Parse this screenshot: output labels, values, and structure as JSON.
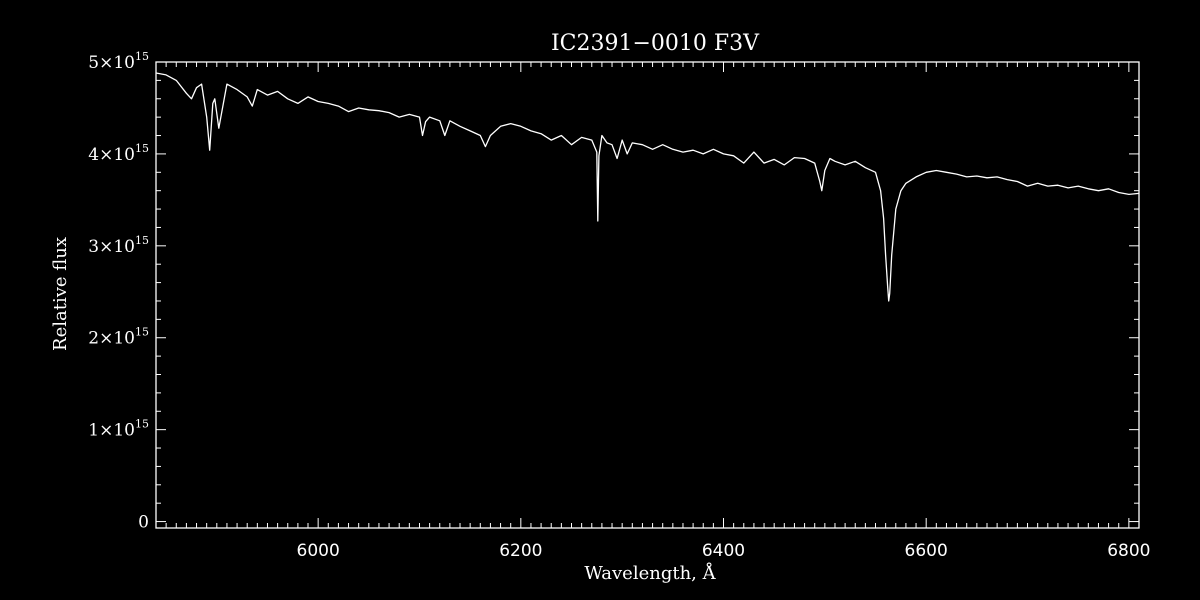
{
  "chart_data": {
    "type": "line",
    "title": "IC2391−0010   F3V",
    "xlabel": "Wavelength, Å",
    "ylabel": "Relative flux",
    "xlim": [
      5840,
      6810
    ],
    "ylim": [
      -70000000000000.0,
      5000000000000000.0
    ],
    "x_ticks": [
      6000,
      6200,
      6400,
      6600,
      6800
    ],
    "x_tick_labels": [
      "6000",
      "6200",
      "6400",
      "6600",
      "6800"
    ],
    "y_ticks": [
      0,
      1000000000000000.0,
      2000000000000000.0,
      3000000000000000.0,
      4000000000000000.0,
      5000000000000000.0
    ],
    "y_tick_labels": [
      {
        "mantissa": "0",
        "exponent": ""
      },
      {
        "mantissa": "1×10",
        "exponent": "15"
      },
      {
        "mantissa": "2×10",
        "exponent": "15"
      },
      {
        "mantissa": "3×10",
        "exponent": "15"
      },
      {
        "mantissa": "4×10",
        "exponent": "15"
      },
      {
        "mantissa": "5×10",
        "exponent": "15"
      }
    ],
    "grid": false,
    "colors": {
      "background": "#000000",
      "foreground": "#ffffff"
    },
    "series": [
      {
        "x": [
          5840,
          5850,
          5860,
          5870,
          5875,
          5880,
          5885,
          5890,
          5893,
          5896,
          5898,
          5902,
          5910,
          5920,
          5930,
          5935,
          5940,
          5950,
          5960,
          5970,
          5980,
          5990,
          6000,
          6010,
          6020,
          6030,
          6040,
          6050,
          6060,
          6070,
          6080,
          6090,
          6100,
          6103,
          6106,
          6110,
          6120,
          6125,
          6130,
          6140,
          6150,
          6160,
          6165,
          6170,
          6180,
          6190,
          6200,
          6210,
          6220,
          6230,
          6240,
          6250,
          6260,
          6270,
          6275,
          6276,
          6277,
          6280,
          6285,
          6290,
          6295,
          6300,
          6305,
          6310,
          6320,
          6330,
          6340,
          6350,
          6360,
          6370,
          6380,
          6390,
          6400,
          6410,
          6420,
          6430,
          6440,
          6450,
          6460,
          6470,
          6480,
          6490,
          6495,
          6497,
          6500,
          6505,
          6510,
          6520,
          6530,
          6540,
          6550,
          6555,
          6558,
          6560,
          6562,
          6563,
          6564,
          6566,
          6570,
          6575,
          6580,
          6590,
          6600,
          6610,
          6620,
          6630,
          6640,
          6650,
          6660,
          6670,
          6680,
          6690,
          6700,
          6710,
          6720,
          6730,
          6740,
          6750,
          6760,
          6770,
          6780,
          6790,
          6800,
          6810
        ],
        "y": [
          4880000000000000.0,
          4860000000000000.0,
          4800000000000000.0,
          4660000000000000.0,
          4600000000000000.0,
          4720000000000000.0,
          4760000000000000.0,
          4400000000000000.0,
          4040000000000000.0,
          4550000000000000.0,
          4600000000000000.0,
          4280000000000000.0,
          4760000000000000.0,
          4700000000000000.0,
          4620000000000000.0,
          4520000000000000.0,
          4700000000000000.0,
          4640000000000000.0,
          4680000000000000.0,
          4600000000000000.0,
          4550000000000000.0,
          4620000000000000.0,
          4570000000000000.0,
          4550000000000000.0,
          4520000000000000.0,
          4460000000000000.0,
          4500000000000000.0,
          4480000000000000.0,
          4470000000000000.0,
          4450000000000000.0,
          4400000000000000.0,
          4430000000000000.0,
          4400000000000000.0,
          4200000000000000.0,
          4350000000000000.0,
          4400000000000000.0,
          4360000000000000.0,
          4200000000000000.0,
          4360000000000000.0,
          4300000000000000.0,
          4250000000000000.0,
          4200000000000000.0,
          4080000000000000.0,
          4200000000000000.0,
          4300000000000000.0,
          4330000000000000.0,
          4300000000000000.0,
          4250000000000000.0,
          4220000000000000.0,
          4150000000000000.0,
          4200000000000000.0,
          4100000000000000.0,
          4180000000000000.0,
          4150000000000000.0,
          4020000000000000.0,
          3270000000000000.0,
          3980000000000000.0,
          4200000000000000.0,
          4120000000000000.0,
          4100000000000000.0,
          3950000000000000.0,
          4150000000000000.0,
          4000000000000000.0,
          4120000000000000.0,
          4100000000000000.0,
          4050000000000000.0,
          4100000000000000.0,
          4050000000000000.0,
          4020000000000000.0,
          4040000000000000.0,
          4000000000000000.0,
          4050000000000000.0,
          4000000000000000.0,
          3980000000000000.0,
          3900000000000000.0,
          4020000000000000.0,
          3900000000000000.0,
          3940000000000000.0,
          3880000000000000.0,
          3960000000000000.0,
          3950000000000000.0,
          3900000000000000.0,
          3700000000000000.0,
          3600000000000000.0,
          3820000000000000.0,
          3950000000000000.0,
          3920000000000000.0,
          3880000000000000.0,
          3920000000000000.0,
          3850000000000000.0,
          3800000000000000.0,
          3600000000000000.0,
          3300000000000000.0,
          2900000000000000.0,
          2550000000000000.0,
          2400000000000000.0,
          2480000000000000.0,
          2900000000000000.0,
          3400000000000000.0,
          3600000000000000.0,
          3680000000000000.0,
          3750000000000000.0,
          3800000000000000.0,
          3820000000000000.0,
          3800000000000000.0,
          3780000000000000.0,
          3750000000000000.0,
          3760000000000000.0,
          3740000000000000.0,
          3750000000000000.0,
          3720000000000000.0,
          3700000000000000.0,
          3650000000000000.0,
          3680000000000000.0,
          3650000000000000.0,
          3660000000000000.0,
          3630000000000000.0,
          3650000000000000.0,
          3620000000000000.0,
          3600000000000000.0,
          3620000000000000.0,
          3580000000000000.0,
          3560000000000000.0,
          3570000000000000.0
        ]
      }
    ]
  }
}
